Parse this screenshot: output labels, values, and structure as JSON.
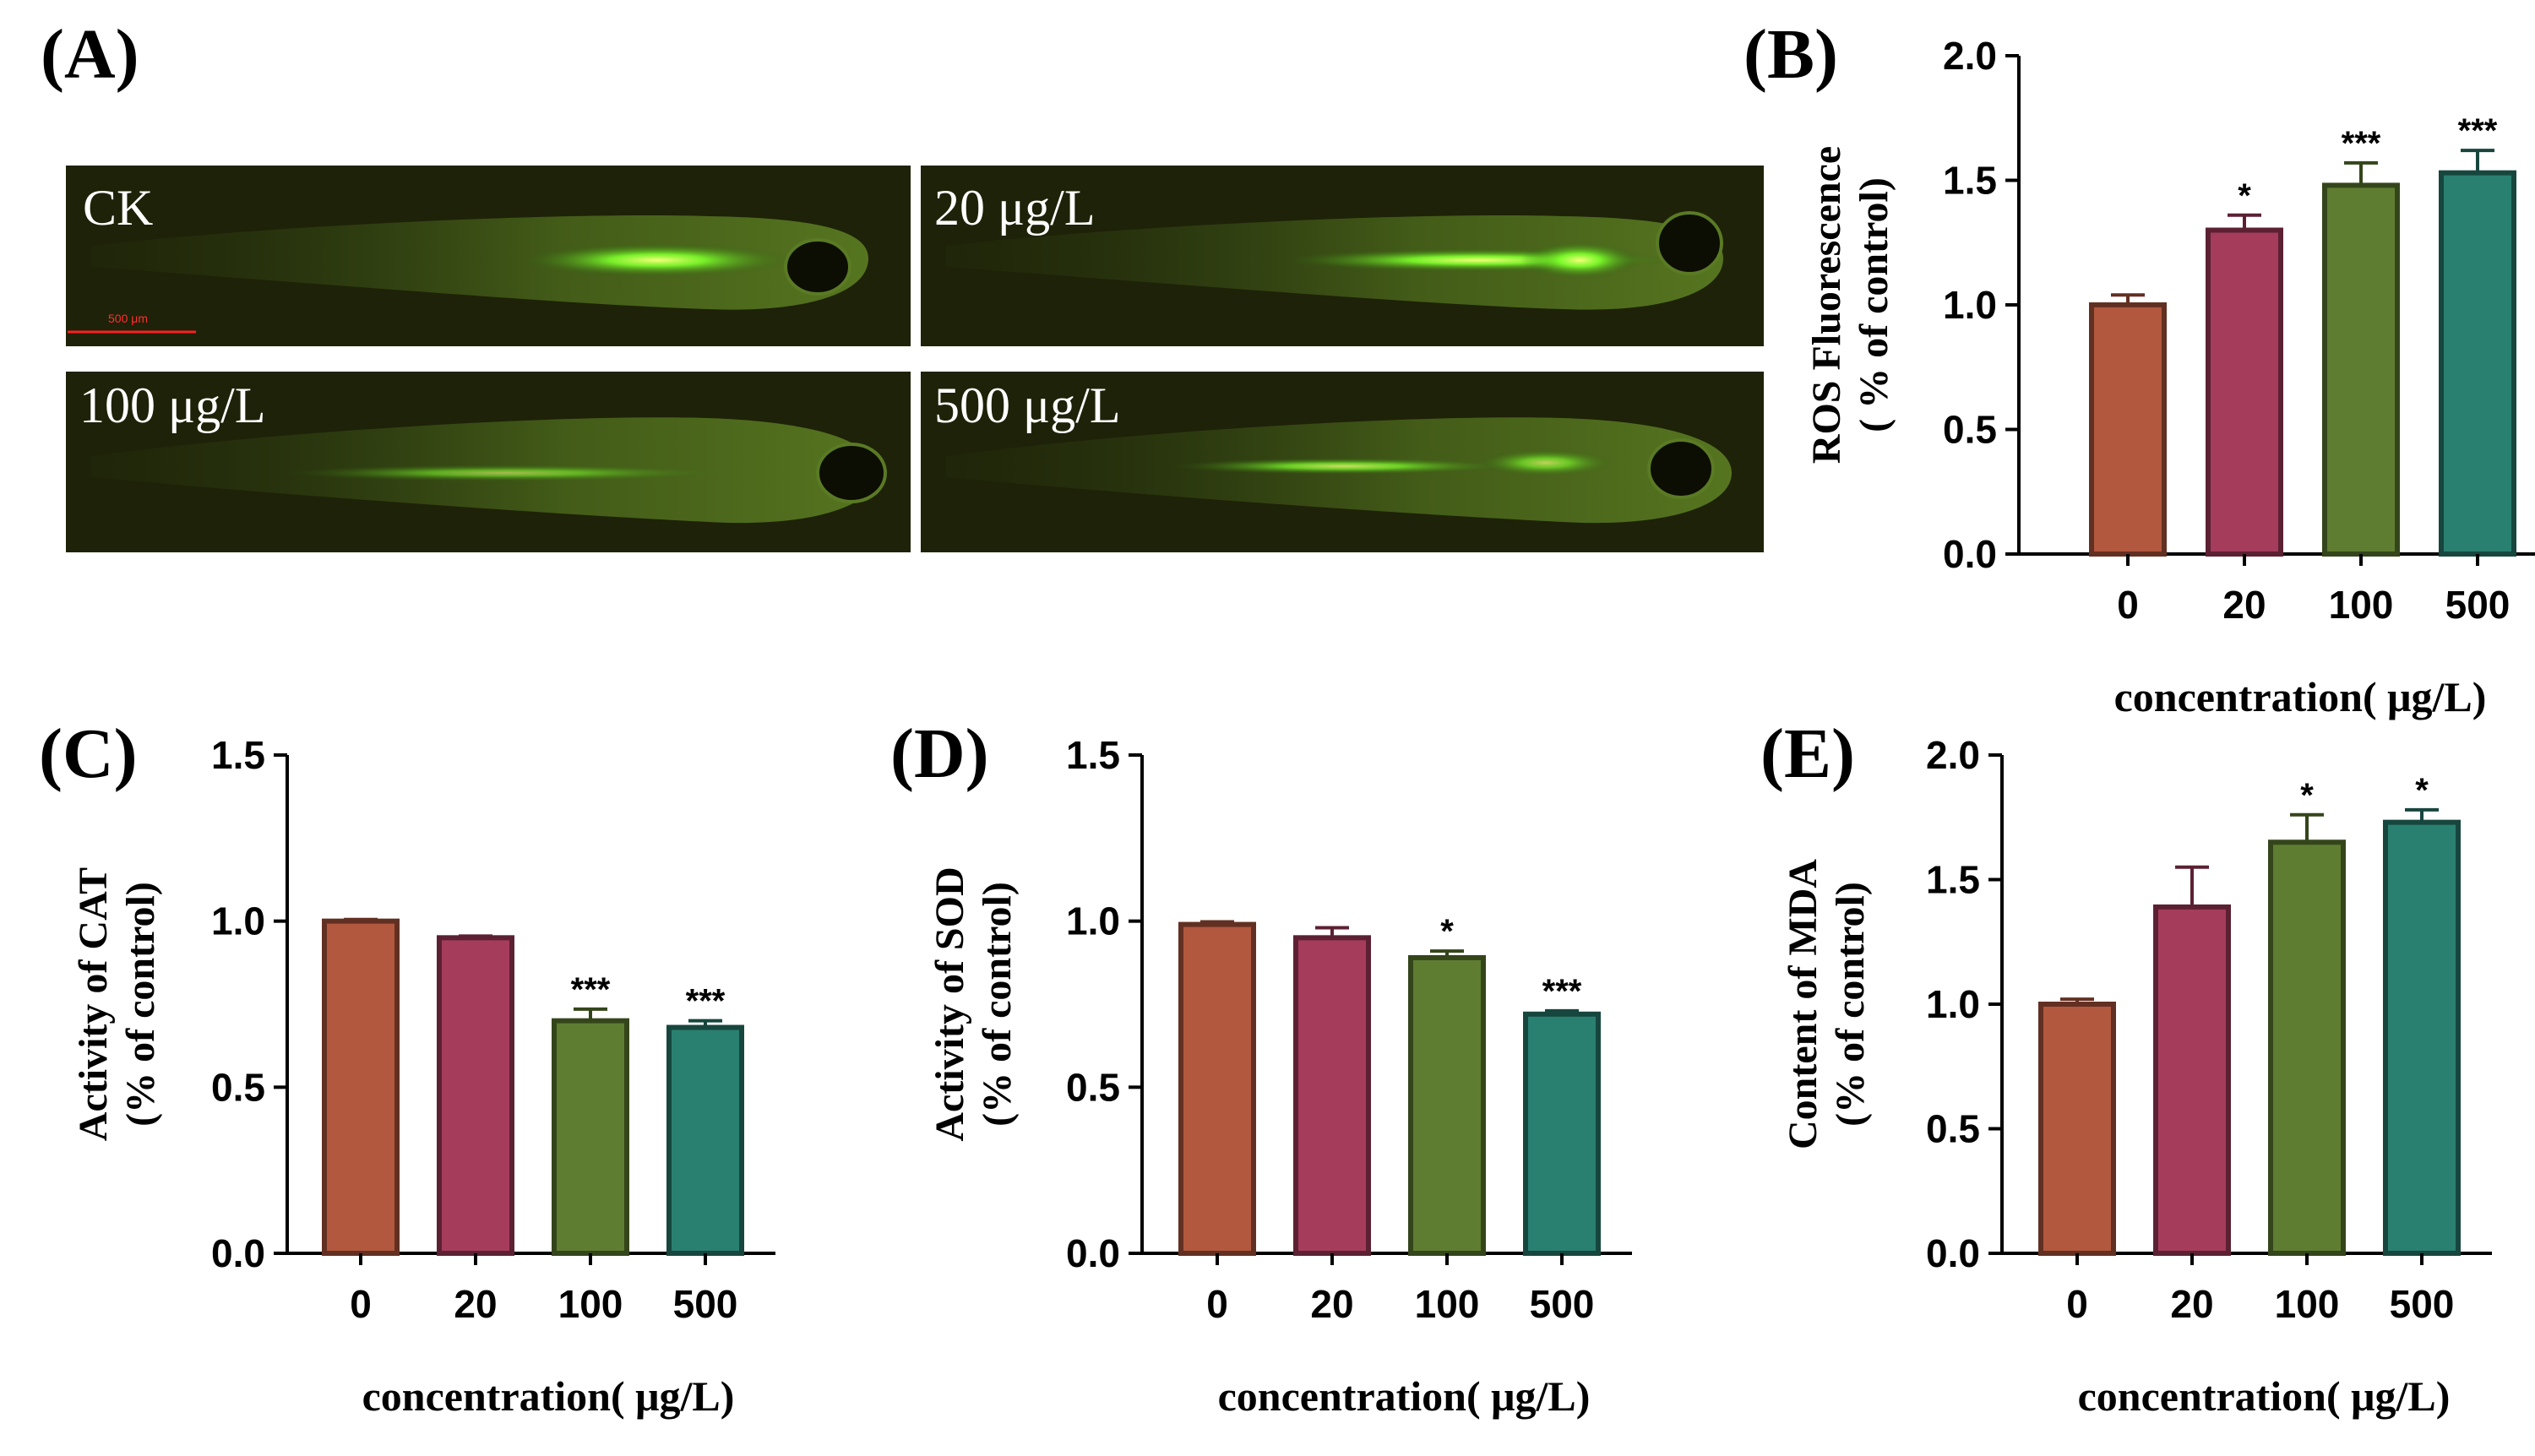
{
  "figure": {
    "panel_a": {
      "letter": "(A)",
      "images": [
        {
          "label": "CK",
          "scale_bar": "500 μm"
        },
        {
          "label": "20 μg/L"
        },
        {
          "label": "100 μg/L"
        },
        {
          "label": "500 μg/L"
        }
      ]
    }
  },
  "chart_data": [
    {
      "panel": "(B)",
      "type": "bar",
      "categories": [
        "0",
        "20",
        "100",
        "500"
      ],
      "values": [
        1.0,
        1.3,
        1.48,
        1.53
      ],
      "errors": [
        0.04,
        0.06,
        0.09,
        0.09
      ],
      "significance": [
        "",
        "*",
        "***",
        "***"
      ],
      "ylim": [
        0,
        2.0
      ],
      "yticks": [
        "0.0",
        "0.5",
        "1.0",
        "1.5",
        "2.0"
      ],
      "ylabel": [
        "ROS Fluorescence",
        "( % of control)"
      ],
      "xlabel": "concentration( μg/L)",
      "colors": [
        "#b2583e",
        "#a63c5c",
        "#5e7d31",
        "#2a8070"
      ]
    },
    {
      "panel": "(C)",
      "type": "bar",
      "categories": [
        "0",
        "20",
        "100",
        "500"
      ],
      "values": [
        1.0,
        0.95,
        0.7,
        0.68
      ],
      "errors": [
        0.005,
        0.005,
        0.035,
        0.02
      ],
      "significance": [
        "",
        "",
        "***",
        "***"
      ],
      "ylim": [
        0,
        1.5
      ],
      "yticks": [
        "0.0",
        "0.5",
        "1.0",
        "1.5"
      ],
      "ylabel": [
        "Activity of CAT",
        "(% of control)"
      ],
      "xlabel": "concentration( μg/L)",
      "colors": [
        "#b2583e",
        "#a63c5c",
        "#5e7d31",
        "#2a8070"
      ]
    },
    {
      "panel": "(D)",
      "type": "bar",
      "categories": [
        "0",
        "20",
        "100",
        "500"
      ],
      "values": [
        0.99,
        0.95,
        0.89,
        0.72
      ],
      "errors": [
        0.008,
        0.03,
        0.02,
        0.01
      ],
      "significance": [
        "",
        "",
        "*",
        "***"
      ],
      "ylim": [
        0,
        1.5
      ],
      "yticks": [
        "0.0",
        "0.5",
        "1.0",
        "1.5"
      ],
      "ylabel": [
        "Activity of SOD",
        "(% of control)"
      ],
      "xlabel": "concentration( μg/L)",
      "colors": [
        "#b2583e",
        "#a63c5c",
        "#5e7d31",
        "#2a8070"
      ]
    },
    {
      "panel": "(E)",
      "type": "bar",
      "categories": [
        "0",
        "20",
        "100",
        "500"
      ],
      "values": [
        1.0,
        1.39,
        1.65,
        1.73
      ],
      "errors": [
        0.02,
        0.16,
        0.11,
        0.05
      ],
      "significance": [
        "",
        "",
        "*",
        "*"
      ],
      "ylim": [
        0,
        2.0
      ],
      "yticks": [
        "0.0",
        "0.5",
        "1.0",
        "1.5",
        "2.0"
      ],
      "ylabel": [
        "Content of MDA",
        "(% of control)"
      ],
      "xlabel": "concentration( μg/L)",
      "colors": [
        "#b2583e",
        "#a63c5c",
        "#5e7d31",
        "#2a8070"
      ]
    }
  ]
}
